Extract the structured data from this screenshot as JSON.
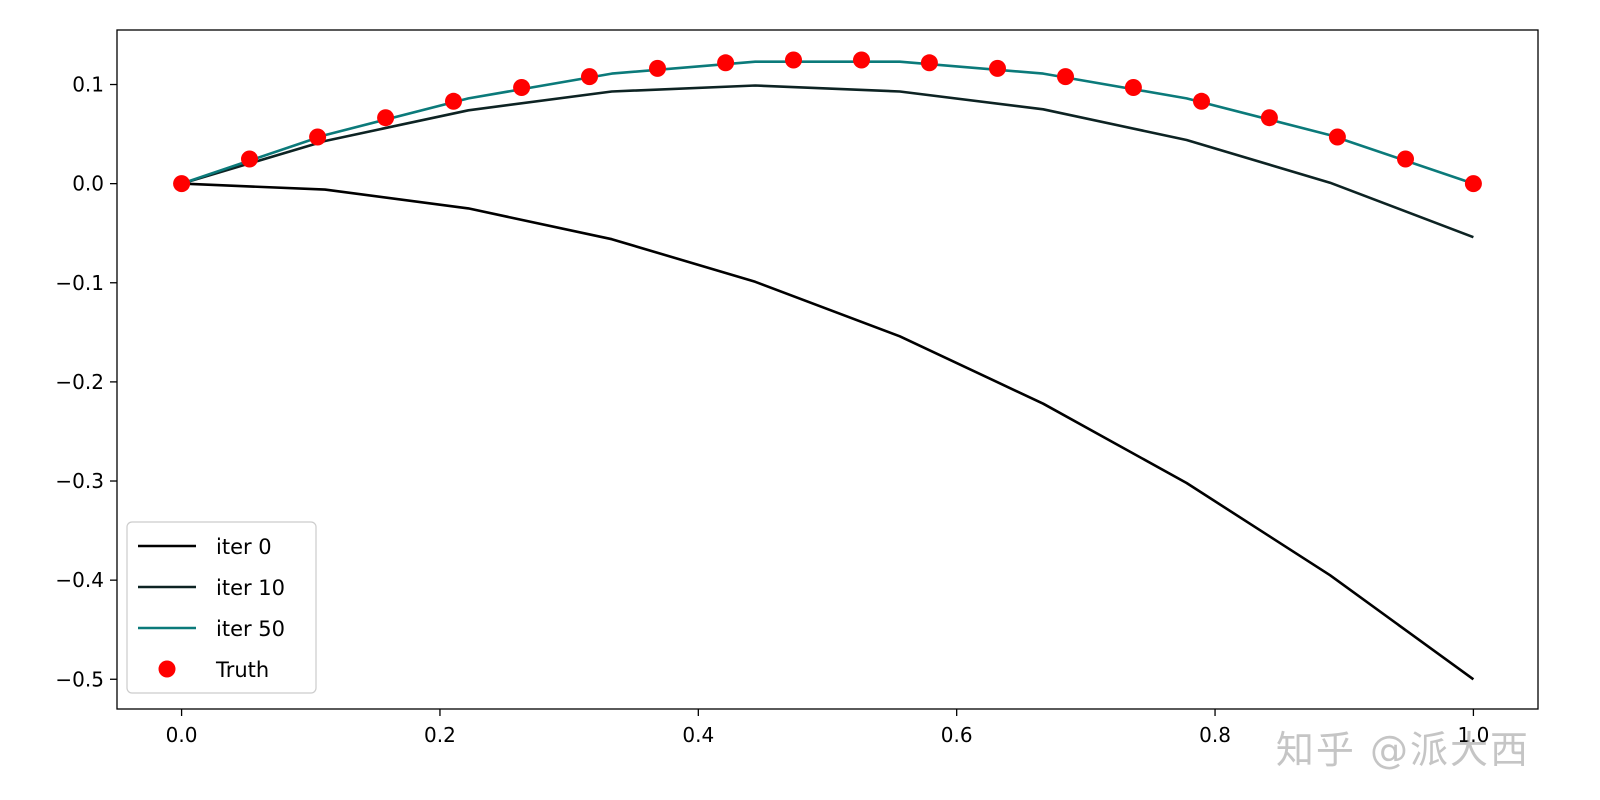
{
  "chart_data": {
    "type": "line",
    "title": "",
    "xlabel": "",
    "ylabel": "",
    "xlim": [
      -0.05,
      1.05
    ],
    "ylim": [
      -0.53,
      0.155
    ],
    "xticks": [
      0.0,
      0.2,
      0.4,
      0.6,
      0.8,
      1.0
    ],
    "xtick_labels": [
      "0.0",
      "0.2",
      "0.4",
      "0.6",
      "0.8",
      "1.0"
    ],
    "yticks": [
      0.1,
      0.0,
      -0.1,
      -0.2,
      -0.3,
      -0.4,
      -0.5
    ],
    "ytick_labels": [
      "0.1",
      "0.0",
      "−0.1",
      "−0.2",
      "−0.3",
      "−0.4",
      "−0.5"
    ],
    "grid": false,
    "legend_position": "lower-left",
    "series": [
      {
        "name": "iter 0",
        "kind": "line",
        "color": "#000000",
        "x": [
          0.0,
          0.111,
          0.222,
          0.333,
          0.444,
          0.556,
          0.667,
          0.778,
          0.889,
          1.0
        ],
        "y": [
          0.0,
          -0.006,
          -0.025,
          -0.056,
          -0.099,
          -0.154,
          -0.222,
          -0.302,
          -0.395,
          -0.5
        ]
      },
      {
        "name": "iter 10",
        "kind": "line",
        "color": "#0d2323",
        "x": [
          0.0,
          0.111,
          0.222,
          0.333,
          0.444,
          0.556,
          0.667,
          0.778,
          0.889,
          1.0
        ],
        "y": [
          0.0,
          0.043,
          0.074,
          0.093,
          0.099,
          0.093,
          0.075,
          0.044,
          0.001,
          -0.054
        ]
      },
      {
        "name": "iter 50",
        "kind": "line",
        "color": "#0b7a7a",
        "x": [
          0.0,
          0.111,
          0.222,
          0.333,
          0.444,
          0.556,
          0.667,
          0.778,
          0.889,
          1.0
        ],
        "y": [
          0.0,
          0.049,
          0.086,
          0.111,
          0.123,
          0.123,
          0.111,
          0.086,
          0.049,
          0.0
        ]
      },
      {
        "name": "Truth",
        "kind": "scatter",
        "color": "#ff0000",
        "x": [
          0.0,
          0.0526,
          0.1053,
          0.1579,
          0.2105,
          0.2632,
          0.3158,
          0.3684,
          0.4211,
          0.4737,
          0.5263,
          0.5789,
          0.6316,
          0.6842,
          0.7368,
          0.7895,
          0.8421,
          0.8947,
          0.9474,
          1.0
        ],
        "y": [
          0.0,
          0.0249,
          0.0471,
          0.0665,
          0.0831,
          0.097,
          0.108,
          0.1163,
          0.1219,
          0.1247,
          0.1247,
          0.1219,
          0.1163,
          0.108,
          0.097,
          0.0831,
          0.0665,
          0.0471,
          0.0249,
          0.0
        ]
      }
    ]
  },
  "watermark": "知乎 @派大西"
}
